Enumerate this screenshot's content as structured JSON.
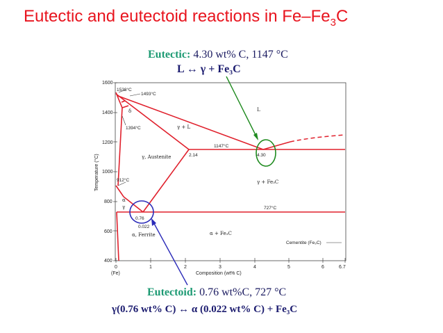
{
  "title": {
    "main": "Eutectic and eutectoid reactions in Fe–Fe",
    "sub": "3",
    "tail": "C"
  },
  "eutectic": {
    "label": "Eutectic:",
    "value": "4.30 wt% C, 1147 °C",
    "reaction": "L  ↔  γ  + Fe₃C"
  },
  "eutectoid": {
    "label": "Eutectoid:",
    "value": "0.76 wt%C, 727 °C",
    "reaction": "γ(0.76 wt% C)  ↔ α (0.022 wt% C) + Fe₃C"
  },
  "diagram": {
    "ylabel": "Temperature (°C)",
    "xlabel": "Composition (wt% C)",
    "yticks": [
      "1600",
      "1400",
      "1200",
      "1000",
      "800",
      "600",
      "400"
    ],
    "xticks": [
      "0",
      "1",
      "2",
      "3",
      "4",
      "5",
      "6",
      "6.7"
    ],
    "fe_label": "(Fe)",
    "labels": {
      "t1538": "1538°C",
      "t1493": "1493°C",
      "t1394": "1394°C",
      "t1147": "1147°C",
      "t912": "912°C",
      "t727": "727°C",
      "c214": "2.14",
      "c430": "4.30",
      "c076": "0.76",
      "c0022": "0.022",
      "delta": "δ",
      "L": "L",
      "gammaL": "γ + L",
      "austenite": "γ, Austenite",
      "gammaFe3C": "γ + Fe₃C",
      "alphaFe3C": "α + Fe₃C",
      "ferrite": "α, Ferrite",
      "cementite": "Cementite (Fe₃C)",
      "alphaSmall": "α",
      "gammaSmall": "γ"
    }
  },
  "colors": {
    "title": "#e8141e",
    "eutectic_marker": "#1e8a1e",
    "eutectoid_marker": "#2b2bb8",
    "phase_line": "#e0202c"
  }
}
